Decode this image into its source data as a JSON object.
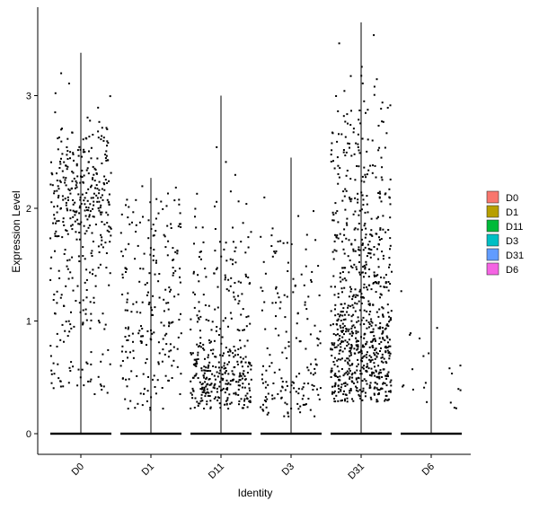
{
  "chart_data": {
    "type": "violin",
    "xlabel": "Identity",
    "ylabel": "Expression Level",
    "ylim": [
      -0.2,
      3.8
    ],
    "y_ticks": [
      0,
      1,
      2,
      3
    ],
    "categories": [
      "D0",
      "D1",
      "D11",
      "D3",
      "D31",
      "D6"
    ],
    "colors": {
      "D0": "#F8766D",
      "D1": "#B79F00",
      "D11": "#00BA38",
      "D3": "#00BFC4",
      "D31": "#619CFF",
      "D6": "#F564E3"
    },
    "series": [
      {
        "name": "D0",
        "max": 3.38,
        "jitter_points": 420
      },
      {
        "name": "D1",
        "max": 2.27,
        "jitter_points": 230
      },
      {
        "name": "D11",
        "max": 3.0,
        "jitter_points": 390
      },
      {
        "name": "D3",
        "max": 2.45,
        "jitter_points": 170
      },
      {
        "name": "D31",
        "max": 3.65,
        "jitter_points": 820
      },
      {
        "name": "D6",
        "max": 1.38,
        "jitter_points": 22
      }
    ],
    "grid": false,
    "legend_position": "right"
  }
}
